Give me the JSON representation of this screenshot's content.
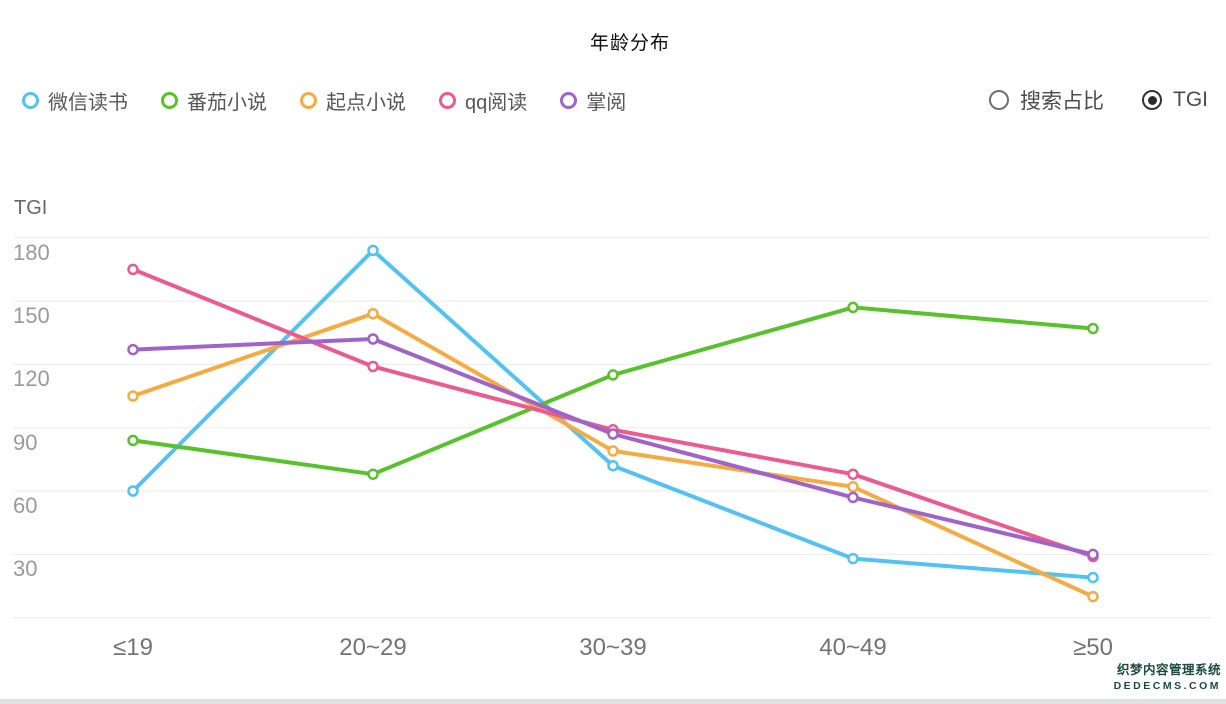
{
  "title": "年龄分布",
  "controls": {
    "options": [
      {
        "label": "搜索占比",
        "selected": false
      },
      {
        "label": "TGI",
        "selected": true
      }
    ]
  },
  "chart_data": {
    "type": "line",
    "title": "年龄分布",
    "ylabel": "TGI",
    "xlabel": "",
    "categories": [
      "≤19",
      "20~29",
      "30~39",
      "40~49",
      "≥50"
    ],
    "series": [
      {
        "name": "微信读书",
        "color": "#52C2F2",
        "values": [
          60,
          174,
          72,
          28,
          19
        ]
      },
      {
        "name": "番茄小说",
        "color": "#58C22C",
        "values": [
          84,
          68,
          115,
          147,
          137
        ]
      },
      {
        "name": "起点小说",
        "color": "#F6AB42",
        "values": [
          105,
          144,
          79,
          62,
          10
        ]
      },
      {
        "name": "qq阅读",
        "color": "#EC5A8F",
        "values": [
          165,
          119,
          89,
          68,
          29
        ]
      },
      {
        "name": "掌阅",
        "color": "#A063C8",
        "values": [
          127,
          132,
          87,
          57,
          30
        ]
      }
    ],
    "ylim": [
      0,
      180
    ],
    "yticks": [
      30,
      60,
      90,
      120,
      150,
      180
    ],
    "grid": true,
    "legend_position": "top-left",
    "selected_metric": "TGI"
  },
  "watermark": {
    "line1": "织梦内容管理系统",
    "line2": "DEDECMS.COM"
  }
}
